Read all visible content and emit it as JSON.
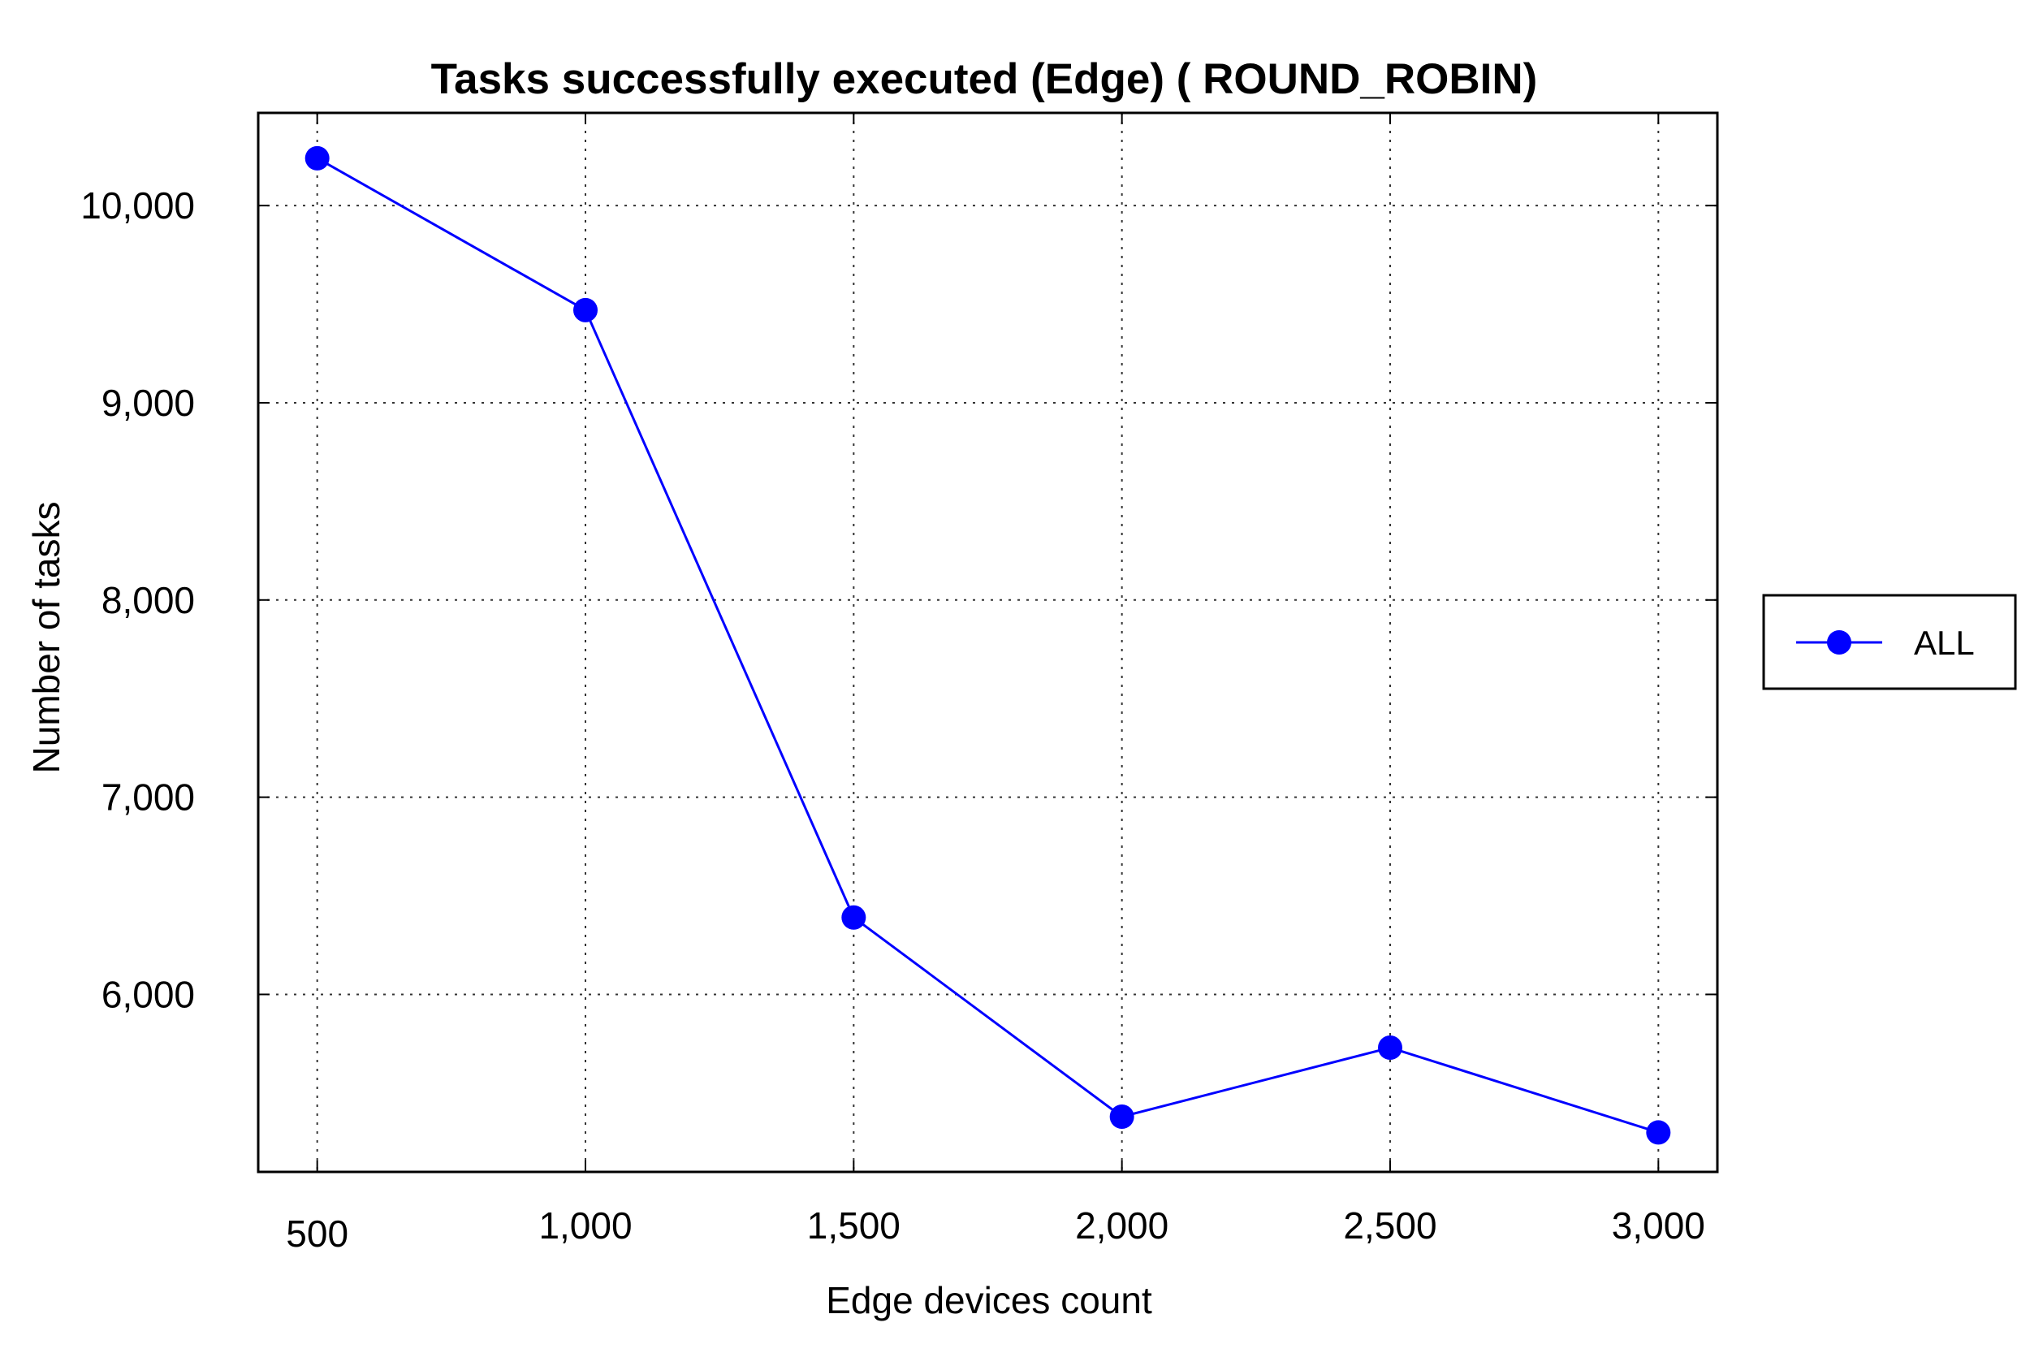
{
  "chart_data": {
    "type": "line",
    "title": "Tasks successfully executed (Edge) ( ROUND_ROBIN)",
    "xlabel": "Edge devices count",
    "ylabel": "Number of tasks",
    "x": [
      500,
      1000,
      1500,
      2000,
      2500,
      3000
    ],
    "x_tick_labels": [
      "500",
      "1,000",
      "1,500",
      "2,000",
      "2,500",
      "3,000"
    ],
    "y_ticks": [
      6000,
      7000,
      8000,
      9000,
      10000
    ],
    "y_tick_labels": [
      "6,000",
      "7,000",
      "8,000",
      "9,000",
      "10,000"
    ],
    "xlim": [
      390,
      3110
    ],
    "ylim": [
      5100,
      10470
    ],
    "grid": true,
    "legend_position": "right",
    "series": [
      {
        "name": "ALL",
        "color": "#0000ff",
        "marker": "circle",
        "values": [
          10240,
          9470,
          6390,
          5380,
          5730,
          5300
        ]
      }
    ]
  }
}
